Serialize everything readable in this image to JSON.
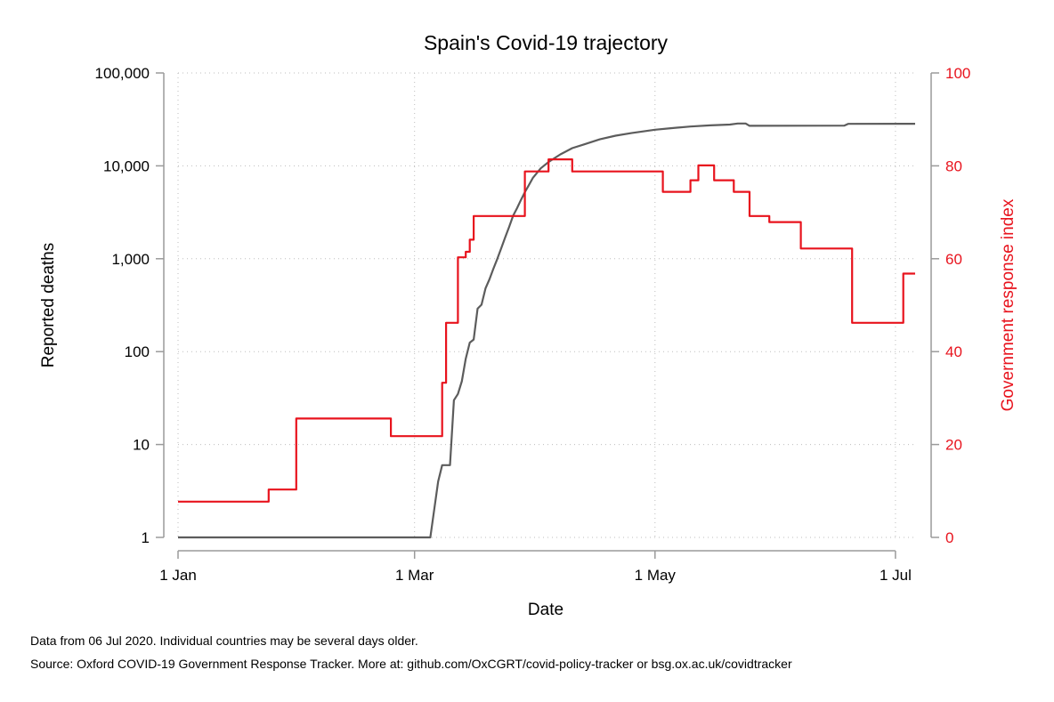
{
  "chart_data": {
    "type": "line",
    "title": "Spain's Covid-19 trajectory",
    "xlabel": "Date",
    "ylabel_left": "Reported deaths",
    "ylabel_right": "Government response index",
    "x_ticks": [
      {
        "date": "2020-01-01",
        "label": "1 Jan"
      },
      {
        "date": "2020-03-01",
        "label": "1 Mar"
      },
      {
        "date": "2020-05-01",
        "label": "1 May"
      },
      {
        "date": "2020-07-01",
        "label": "1 Jul"
      }
    ],
    "xlim": [
      "2020-01-01",
      "2020-07-06"
    ],
    "y_left": {
      "scale": "log",
      "ylim": [
        1,
        100000
      ],
      "ticks": [
        {
          "value": 1,
          "label": "1"
        },
        {
          "value": 10,
          "label": "10"
        },
        {
          "value": 100,
          "label": "100"
        },
        {
          "value": 1000,
          "label": "1,000"
        },
        {
          "value": 10000,
          "label": "10,000"
        },
        {
          "value": 100000,
          "label": "100,000"
        }
      ]
    },
    "y_right": {
      "scale": "linear",
      "ylim": [
        0,
        100
      ],
      "ticks": [
        {
          "value": 0,
          "label": "0"
        },
        {
          "value": 20,
          "label": "20"
        },
        {
          "value": 40,
          "label": "40"
        },
        {
          "value": 60,
          "label": "60"
        },
        {
          "value": 80,
          "label": "80"
        },
        {
          "value": 100,
          "label": "100"
        }
      ]
    },
    "grid": true,
    "series": [
      {
        "key": "deaths",
        "axis": "left",
        "color": "#5c5c5c",
        "step": false,
        "points": [
          [
            "2020-01-01",
            1
          ],
          [
            "2020-03-04",
            1
          ],
          [
            "2020-03-05",
            1
          ],
          [
            "2020-03-07",
            4
          ],
          [
            "2020-03-08",
            6
          ],
          [
            "2020-03-10",
            6
          ],
          [
            "2020-03-11",
            30
          ],
          [
            "2020-03-12",
            35
          ],
          [
            "2020-03-13",
            48
          ],
          [
            "2020-03-14",
            84
          ],
          [
            "2020-03-15",
            125
          ],
          [
            "2020-03-16",
            135
          ],
          [
            "2020-03-17",
            290
          ],
          [
            "2020-03-18",
            320
          ],
          [
            "2020-03-19",
            480
          ],
          [
            "2020-03-20",
            600
          ],
          [
            "2020-03-21",
            780
          ],
          [
            "2020-03-22",
            1000
          ],
          [
            "2020-03-23",
            1300
          ],
          [
            "2020-03-24",
            1700
          ],
          [
            "2020-03-25",
            2200
          ],
          [
            "2020-03-26",
            2900
          ],
          [
            "2020-03-27",
            3500
          ],
          [
            "2020-03-28",
            4300
          ],
          [
            "2020-03-29",
            5200
          ],
          [
            "2020-03-30",
            6200
          ],
          [
            "2020-03-31",
            7400
          ],
          [
            "2020-04-02",
            9400
          ],
          [
            "2020-04-04",
            11000
          ],
          [
            "2020-04-07",
            13300
          ],
          [
            "2020-04-10",
            15500
          ],
          [
            "2020-04-13",
            17000
          ],
          [
            "2020-04-17",
            19300
          ],
          [
            "2020-04-21",
            21100
          ],
          [
            "2020-04-25",
            22500
          ],
          [
            "2020-04-28",
            23500
          ],
          [
            "2020-05-01",
            24500
          ],
          [
            "2020-05-05",
            25400
          ],
          [
            "2020-05-10",
            26500
          ],
          [
            "2020-05-15",
            27300
          ],
          [
            "2020-05-20",
            27800
          ],
          [
            "2020-05-22",
            28600
          ],
          [
            "2020-05-24",
            28600
          ],
          [
            "2020-05-25",
            27000
          ],
          [
            "2020-06-18",
            27100
          ],
          [
            "2020-06-19",
            28300
          ],
          [
            "2020-07-06",
            28400
          ]
        ]
      },
      {
        "key": "response",
        "axis": "right",
        "color": "#e8131d",
        "step": true,
        "points": [
          [
            "2020-01-01",
            7.7
          ],
          [
            "2020-01-24",
            10.3
          ],
          [
            "2020-01-31",
            25.6
          ],
          [
            "2020-02-24",
            21.8
          ],
          [
            "2020-03-08",
            33.3
          ],
          [
            "2020-03-09",
            46.2
          ],
          [
            "2020-03-12",
            60.3
          ],
          [
            "2020-03-14",
            61.5
          ],
          [
            "2020-03-15",
            64.1
          ],
          [
            "2020-03-16",
            69.2
          ],
          [
            "2020-03-29",
            78.8
          ],
          [
            "2020-04-04",
            81.4
          ],
          [
            "2020-04-10",
            78.8
          ],
          [
            "2020-05-03",
            74.4
          ],
          [
            "2020-05-10",
            76.9
          ],
          [
            "2020-05-12",
            80.1
          ],
          [
            "2020-05-16",
            76.9
          ],
          [
            "2020-05-21",
            74.4
          ],
          [
            "2020-05-25",
            69.2
          ],
          [
            "2020-05-30",
            67.9
          ],
          [
            "2020-06-07",
            62.2
          ],
          [
            "2020-06-20",
            46.2
          ],
          [
            "2020-07-03",
            56.8
          ],
          [
            "2020-07-06",
            56.8
          ]
        ]
      }
    ]
  },
  "notes": {
    "data_note": "Data from 06 Jul 2020. Individual countries may be several days older.",
    "source_note": "Source: Oxford COVID-19 Government Response Tracker. More at: github.com/OxCGRT/covid-policy-tracker or bsg.ox.ac.uk/covidtracker"
  }
}
